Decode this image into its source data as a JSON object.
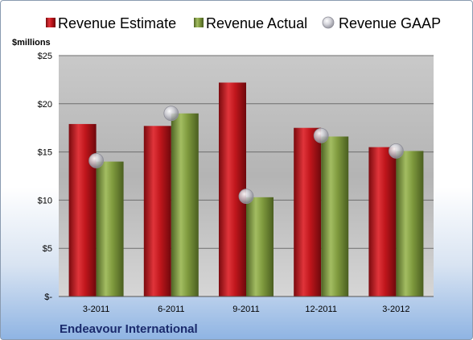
{
  "chart_data": {
    "type": "bar",
    "categories": [
      "3-2011",
      "6-2011",
      "9-2011",
      "12-2011",
      "3-2012"
    ],
    "series": [
      {
        "name": "Revenue Estimate",
        "kind": "bar",
        "color": "#c0161c",
        "values": [
          17.9,
          17.7,
          22.2,
          17.5,
          15.5
        ]
      },
      {
        "name": "Revenue Actual",
        "kind": "bar",
        "color": "#7f9a3e",
        "values": [
          14.0,
          19.0,
          10.3,
          16.6,
          15.1
        ]
      },
      {
        "name": "Revenue GAAP",
        "kind": "marker",
        "color": "#b8b8c0",
        "values": [
          14.1,
          19.0,
          10.4,
          16.7,
          15.1
        ]
      }
    ],
    "ylabel": "$millions",
    "ylim": [
      0,
      25
    ],
    "yticks": [
      0,
      5,
      10,
      15,
      20,
      25
    ],
    "ytick_labels": [
      "$-",
      "$5",
      "$10",
      "$15",
      "$20",
      "$25"
    ],
    "grid": true,
    "legend_position": "top",
    "company": "Endeavour International"
  }
}
